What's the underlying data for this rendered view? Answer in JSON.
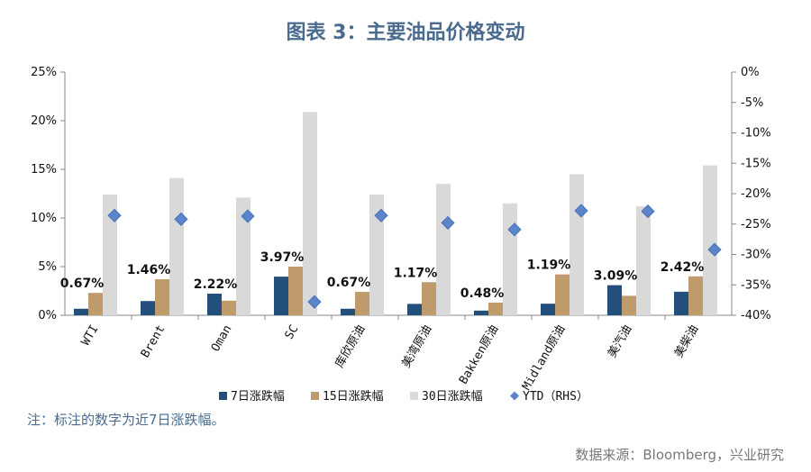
{
  "title": "图表 3：主要油品价格变动",
  "note": "注：标注的数字为近7日涨跌幅。",
  "source": "数据来源：Bloomberg，兴业研究",
  "colors": {
    "d7": "#234f7d",
    "d15": "#bf9a6a",
    "d30": "#d9d9d9",
    "ytd": "#5b84c9"
  },
  "chart_data": {
    "type": "bar",
    "categories": [
      "WTI",
      "Brent",
      "Oman",
      "SC",
      "库欣原油",
      "美湾原油",
      "Bakken原油",
      "Midland原油",
      "美汽油",
      "美柴油"
    ],
    "series": [
      {
        "name": "7日涨跌幅",
        "values": [
          0.67,
          1.46,
          2.22,
          3.97,
          0.67,
          1.17,
          0.48,
          1.19,
          3.09,
          2.42
        ]
      },
      {
        "name": "15日涨跌幅",
        "values": [
          2.3,
          3.7,
          1.5,
          5.0,
          2.4,
          3.4,
          1.3,
          4.2,
          2.0,
          4.0
        ]
      },
      {
        "name": "30日涨跌幅",
        "values": [
          12.4,
          14.1,
          12.1,
          20.9,
          12.4,
          13.5,
          11.5,
          14.5,
          11.2,
          15.4
        ]
      },
      {
        "name": "YTD（RHS）",
        "axis": "right",
        "values": [
          -23.6,
          -24.2,
          -23.7,
          -37.8,
          -23.6,
          -24.8,
          -25.9,
          -22.8,
          -22.9,
          -29.2
        ]
      }
    ],
    "data_labels": [
      "0.67%",
      "1.46%",
      "2.22%",
      "3.97%",
      "0.67%",
      "1.17%",
      "0.48%",
      "1.19%",
      "3.09%",
      "2.42%"
    ],
    "ylim": [
      0,
      25
    ],
    "yticks": [
      "0%",
      "5%",
      "10%",
      "15%",
      "20%",
      "25%"
    ],
    "y2lim": [
      -40,
      0
    ],
    "y2ticks": [
      "0%",
      "-5%",
      "-10%",
      "-15%",
      "-20%",
      "-25%",
      "-30%",
      "-35%",
      "-40%"
    ],
    "legend": [
      "7日涨跌幅",
      "15日涨跌幅",
      "30日涨跌幅",
      "YTD（RHS）"
    ],
    "legend_position": "bottom"
  }
}
